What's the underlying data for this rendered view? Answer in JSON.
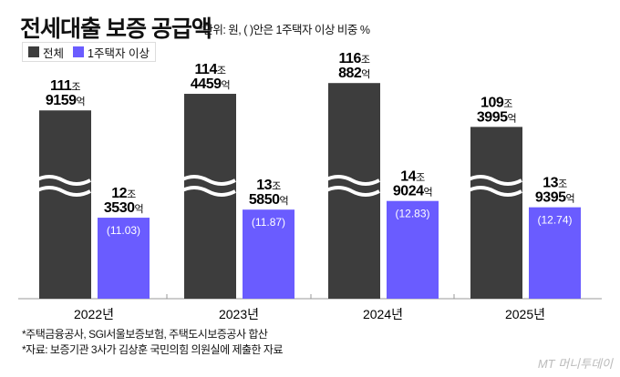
{
  "chart_data": {
    "type": "bar",
    "title": "전세대출 보증 공급액",
    "subtitle": "*단위: 원, ( )안은 1주택자 이상 비중 %",
    "categories": [
      "2022년",
      "2023년",
      "2024년",
      "2025년"
    ],
    "series": [
      {
        "name": "전체",
        "color": "#3d3d3d",
        "values": [
          111.9159,
          114.4459,
          116.0882,
          109.3995
        ],
        "labels": [
          [
            "111",
            "조",
            "9159",
            "억"
          ],
          [
            "114",
            "조",
            "4459",
            "억"
          ],
          [
            "116",
            "조",
            "882",
            "억"
          ],
          [
            "109",
            "조",
            "3995",
            "억"
          ]
        ]
      },
      {
        "name": "1주택자 이상",
        "color": "#6a5cff",
        "values": [
          12.353,
          13.585,
          14.9024,
          13.9395
        ],
        "labels": [
          [
            "12",
            "조",
            "3530",
            "억"
          ],
          [
            "13",
            "조",
            "5850",
            "억"
          ],
          [
            "14",
            "조",
            "9024",
            "억"
          ],
          [
            "13",
            "조",
            "9395",
            "억"
          ]
        ],
        "shares": [
          "(11.03)",
          "(11.87)",
          "(12.83)",
          "(12.74)"
        ]
      }
    ],
    "axis_break": true,
    "legend": "top-left"
  },
  "notes": [
    "*주택금융공사, SGI서울보증보험, 주택도시보증공사 합산",
    "*자료: 보증기관 3사가 김상훈 국민의힘 의원실에 제출한 자료"
  ],
  "logo": "MT 머니투데이"
}
